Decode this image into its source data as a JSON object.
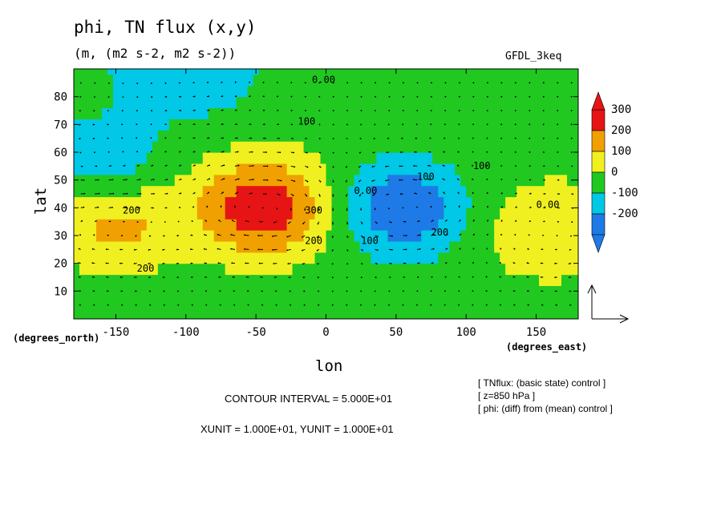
{
  "header": {
    "title": "phi, TN flux (x,y)",
    "subtitle": "(m, (m2 s-2, m2 s-2))",
    "dataset": "GFDL_3keq"
  },
  "notes": {
    "contour_interval": "CONTOUR INTERVAL = 5.000E+01",
    "units": "XUNIT = 1.000E+01, YUNIT = 1.000E+01",
    "info": [
      "[ TNflux: (basic state) control ]",
      "[ z=850 hPa ]",
      "[ phi: (diff) from (mean) control ]"
    ]
  },
  "chart_data": {
    "type": "heatmap",
    "title": "phi, TN flux (x,y)",
    "xlabel": "lon",
    "ylabel": "lat",
    "x_unit_label": "(degrees_east)",
    "y_unit_label": "(degrees_north)",
    "xlim": [
      -180,
      180
    ],
    "ylim": [
      0,
      90
    ],
    "x_ticks": [
      -150,
      -100,
      -50,
      0,
      50,
      100,
      150
    ],
    "x_tick_labels": [
      "-150",
      "-100",
      "-50",
      "0",
      "50",
      "100",
      "150"
    ],
    "y_ticks": [
      10,
      20,
      30,
      40,
      50,
      60,
      70,
      80
    ],
    "y_tick_labels": [
      "10",
      "20",
      "30",
      "40",
      "50",
      "60",
      "70",
      "80"
    ],
    "colorbar": {
      "levels": [
        -200,
        -100,
        0,
        100,
        200,
        300
      ],
      "labels": [
        "-200",
        "-100",
        "0",
        "100",
        "200",
        "300"
      ],
      "colors": [
        "#1e7ae6",
        "#00c8e6",
        "#20c820",
        "#f0f020",
        "#f0a000",
        "#e61414"
      ]
    },
    "field_features": [
      {
        "kind": "high",
        "lon": -45,
        "lat": 40,
        "value": 320
      },
      {
        "kind": "high",
        "lon": -150,
        "lat": 35,
        "value": 180
      },
      {
        "kind": "low",
        "lon": 55,
        "lat": 40,
        "value": -260
      },
      {
        "kind": "low",
        "lon": -160,
        "lat": 55,
        "value": -150
      },
      {
        "kind": "high",
        "lon": 160,
        "lat": 30,
        "value": 130
      },
      {
        "kind": "low",
        "lon": -100,
        "lat": 88,
        "value": -120
      }
    ],
    "contour_labels": [
      "0.00",
      "100",
      "200",
      "200",
      "300",
      "0.00",
      "200",
      "100",
      "100",
      "200",
      "100",
      "0.00"
    ],
    "reference_vector": "1.000E+01",
    "grid": false
  }
}
